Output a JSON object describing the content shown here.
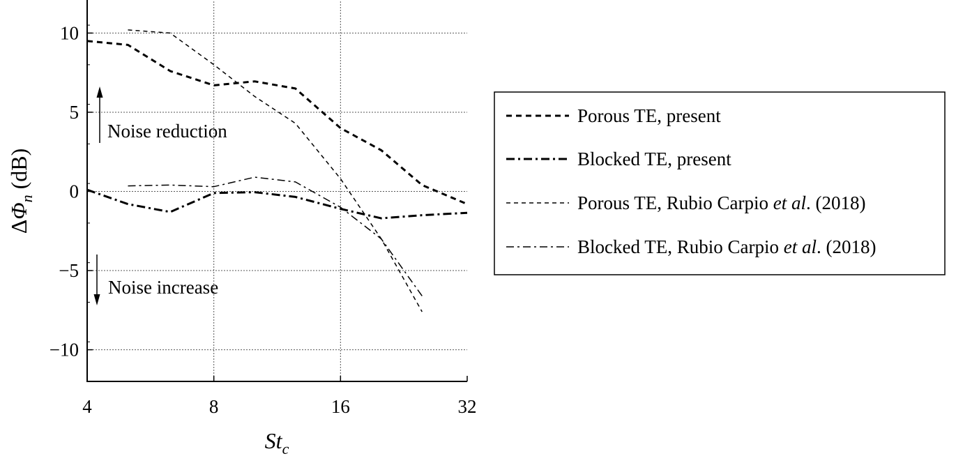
{
  "chart_data": {
    "type": "line",
    "title": "",
    "xlabel_main": "St",
    "xlabel_sub": "c",
    "ylabel_prefix": "Δ",
    "ylabel_symbol": "Φ",
    "ylabel_sub": "n",
    "ylabel_unit": " (dB)",
    "x_scale": "log2",
    "xlim": [
      4,
      32
    ],
    "ylim": [
      -12,
      12
    ],
    "x_ticks": [
      4,
      8,
      16,
      32
    ],
    "x_tick_labels": [
      "4",
      "8",
      "16",
      "32"
    ],
    "y_ticks": [
      10,
      5,
      0,
      -5,
      -10
    ],
    "y_tick_labels": [
      "10",
      "5",
      "0",
      "−5",
      "−10"
    ],
    "grid": true,
    "legend_position": "right-outside",
    "series": [
      {
        "name": "Porous TE, present",
        "style": "dashed-thick",
        "x": [
          4,
          5,
          6.3,
          8,
          10,
          12.5,
          16,
          20,
          25,
          32
        ],
        "y": [
          9.5,
          9.25,
          7.6,
          6.7,
          6.95,
          6.5,
          4.0,
          2.6,
          0.4,
          -0.8
        ]
      },
      {
        "name": "Blocked TE, present",
        "style": "dashdot-thick",
        "x": [
          4,
          5,
          6.3,
          8,
          10,
          12.5,
          16,
          20,
          25,
          32
        ],
        "y": [
          0.1,
          -0.8,
          -1.3,
          -0.1,
          -0.05,
          -0.35,
          -1.1,
          -1.7,
          -1.5,
          -1.35
        ]
      },
      {
        "name": "Porous TE, Rubio Carpio et al. (2018)",
        "style": "dashed-thin",
        "x": [
          5,
          6.3,
          8,
          10,
          12.5,
          16,
          20,
          25
        ],
        "y": [
          10.2,
          10.0,
          8.0,
          6.0,
          4.3,
          0.8,
          -3.0,
          -7.6
        ]
      },
      {
        "name": "Blocked TE, Rubio Carpio et al. (2018)",
        "style": "dashdot-thin",
        "x": [
          5,
          6.3,
          8,
          10,
          12.5,
          16,
          20,
          25
        ],
        "y": [
          0.35,
          0.4,
          0.3,
          0.9,
          0.6,
          -1.0,
          -3.0,
          -6.6
        ]
      }
    ],
    "legend": [
      {
        "label_main": "Porous TE, present",
        "label_italic": "",
        "label_tail": ""
      },
      {
        "label_main": "Blocked TE, present",
        "label_italic": "",
        "label_tail": ""
      },
      {
        "label_main": "Porous TE, Rubio Carpio ",
        "label_italic": "et al",
        "label_tail": ". (2018)"
      },
      {
        "label_main": "Blocked TE, Rubio Carpio ",
        "label_italic": "et al",
        "label_tail": ". (2018)"
      }
    ],
    "annotations": [
      {
        "text": "Noise reduction",
        "direction": "up"
      },
      {
        "text": "Noise increase",
        "direction": "down"
      }
    ]
  }
}
